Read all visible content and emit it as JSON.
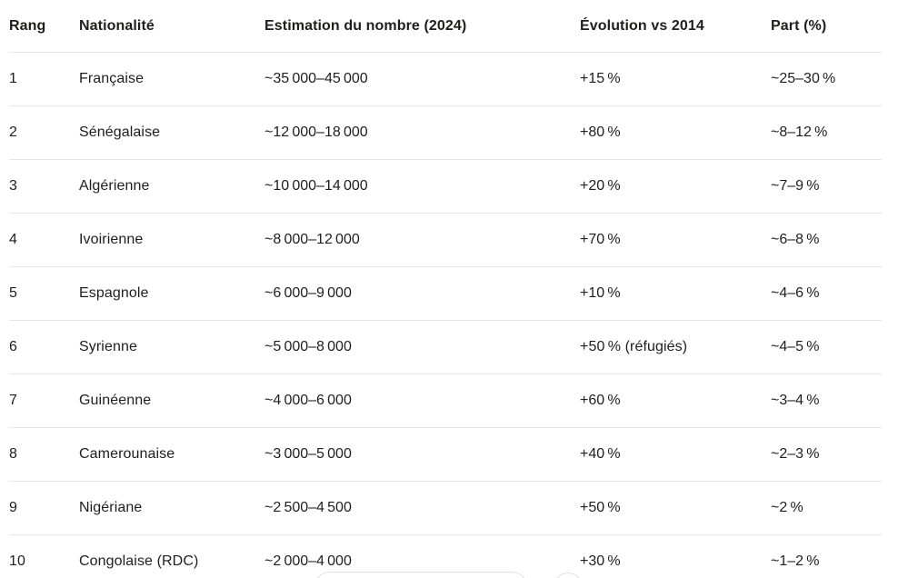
{
  "colors": {
    "background": "#ffffff",
    "text": "#1f1e1d",
    "divider": "#e4e6e9",
    "button_border": "#dde0e5"
  },
  "table": {
    "columns": [
      {
        "key": "rang",
        "label": "Rang"
      },
      {
        "key": "nationalite",
        "label": "Nationalité"
      },
      {
        "key": "estimation",
        "label": "Estimation du nombre (2024)"
      },
      {
        "key": "evolution",
        "label": "Évolution vs 2014"
      },
      {
        "key": "part",
        "label": "Part (%)"
      }
    ],
    "rows": [
      [
        "1",
        "Française",
        "~35 000–45 000",
        "+15 %",
        "~25–30 %"
      ],
      [
        "2",
        "Sénégalaise",
        "~12 000–18 000",
        "+80 %",
        "~8–12 %"
      ],
      [
        "3",
        "Algérienne",
        "~10 000–14 000",
        "+20 %",
        "~7–9 %"
      ],
      [
        "4",
        "Ivoirienne",
        "~8 000–12 000",
        "+70 %",
        "~6–8 %"
      ],
      [
        "5",
        "Espagnole",
        "~6 000–9 000",
        "+10 %",
        "~4–6 %"
      ],
      [
        "6",
        "Syrienne",
        "~5 000–8 000",
        "+50 % (réfugiés)",
        "~4–5 %"
      ],
      [
        "7",
        "Guinéenne",
        "~4 000–6 000",
        "+60 %",
        "~3–4 %"
      ],
      [
        "8",
        "Camerounaise",
        "~3 000–5 000",
        "+40 %",
        "~2–3 %"
      ],
      [
        "9",
        "Nigériane",
        "~2 500–4 500",
        "+50 %",
        "~2 %"
      ],
      [
        "10",
        "Congolaise (RDC)",
        "~2 000–4 000",
        "+30 %",
        "~1–2 %"
      ]
    ]
  }
}
